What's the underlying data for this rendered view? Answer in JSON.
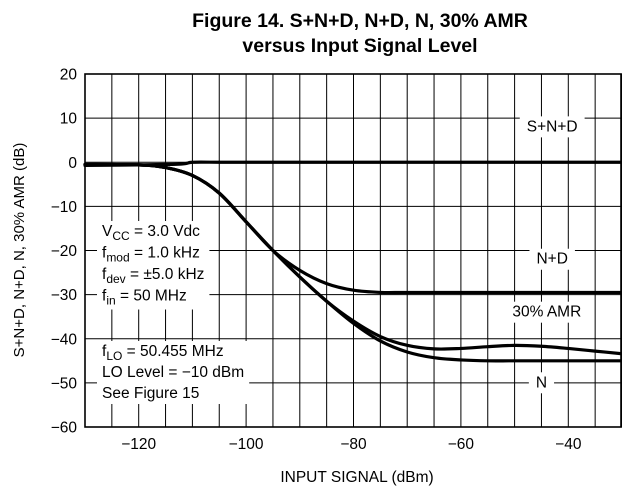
{
  "chart_data": {
    "type": "line",
    "title": "Figure 14. S+N+D, N+D, N, 30% AMR",
    "subtitle": "versus Input Signal Level",
    "xlabel": "INPUT SIGNAL (dBm)",
    "ylabel": "S+N+D, N+D, N, 30% AMR (dB)",
    "xlim": [
      -130,
      -30
    ],
    "ylim": [
      -60,
      20
    ],
    "x_ticks": [
      -120,
      -100,
      -80,
      -60,
      -40
    ],
    "y_ticks": [
      20,
      10,
      0,
      -10,
      -20,
      -30,
      -40,
      -50,
      -60
    ],
    "grid": true,
    "series": [
      {
        "name": "S+N+D",
        "x": [
          -130,
          -120,
          -112,
          -110,
          -105,
          -100,
          -80,
          -60,
          -40,
          -30
        ],
        "y": [
          -0.7,
          -0.6,
          -0.4,
          0,
          0,
          0,
          0,
          0,
          0,
          0
        ]
      },
      {
        "name": "N+D",
        "x": [
          -130,
          -120,
          -115,
          -110,
          -105,
          -100,
          -95,
          -90,
          -85,
          -80,
          -75,
          -70,
          -60,
          -50,
          -40,
          -30
        ],
        "y": [
          -0.5,
          -0.6,
          -1.2,
          -3,
          -7,
          -13.5,
          -20,
          -24.5,
          -27.5,
          -29,
          -29.5,
          -29.5,
          -29.5,
          -29.5,
          -29.5,
          -29.5
        ]
      },
      {
        "name": "N",
        "x": [
          -130,
          -120,
          -115,
          -110,
          -105,
          -100,
          -95,
          -90,
          -85,
          -80,
          -75,
          -70,
          -65,
          -60,
          -55,
          -50,
          -40,
          -30
        ],
        "y": [
          -0.5,
          -0.6,
          -1.2,
          -3,
          -7,
          -13.5,
          -20,
          -26,
          -31.5,
          -36.5,
          -40.5,
          -43,
          -44.3,
          -44.8,
          -45,
          -45,
          -45,
          -45
        ]
      },
      {
        "name": "30% AMR",
        "x": [
          -130,
          -120,
          -115,
          -110,
          -105,
          -100,
          -95,
          -90,
          -85,
          -80,
          -75,
          -70,
          -65,
          -60,
          -55,
          -50,
          -45,
          -40,
          -35,
          -30
        ],
        "y": [
          -0.5,
          -0.6,
          -1.2,
          -3,
          -7,
          -13.5,
          -20,
          -26,
          -31.5,
          -36,
          -39.5,
          -41.5,
          -42.3,
          -42.2,
          -41.8,
          -41.5,
          -41.7,
          -42.2,
          -42.8,
          -43.4
        ]
      }
    ],
    "annotations": {
      "conditions_upper": [
        [
          "V",
          "CC",
          " = 3.0 Vdc"
        ],
        [
          "f",
          "mod",
          " = 1.0 kHz"
        ],
        [
          "f",
          "dev",
          " = ±5.0 kHz"
        ],
        [
          "f",
          "in",
          " = 50 MHz"
        ]
      ],
      "conditions_lower": [
        [
          "f",
          "LO",
          " = 50.455 MHz"
        ],
        [
          "",
          "",
          "LO Level = −10 dBm"
        ],
        [
          "",
          "",
          "See Figure 15"
        ]
      ]
    },
    "colors": {
      "line": "#000000",
      "grid": "#000000",
      "background": "#ffffff"
    }
  }
}
